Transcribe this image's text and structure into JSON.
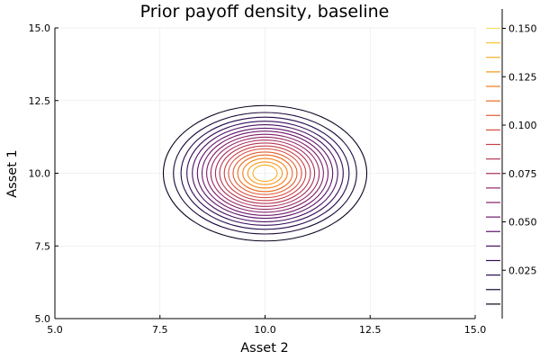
{
  "chart_data": {
    "type": "contour",
    "title": "Prior payoff density, baseline",
    "xlabel": "Asset 2",
    "ylabel": "Asset 1",
    "xlim": [
      5.0,
      15.0
    ],
    "ylim": [
      5.0,
      15.0
    ],
    "xticks": [
      "5.0",
      "7.5",
      "10.0",
      "12.5",
      "15.0"
    ],
    "yticks": [
      "5.0",
      "7.5",
      "10.0",
      "12.5",
      "15.0"
    ],
    "grid": true,
    "center": {
      "x": 10.0,
      "y": 10.0
    },
    "contour_levels": [
      0.0075,
      0.015,
      0.0225,
      0.03,
      0.0375,
      0.045,
      0.0525,
      0.06,
      0.0675,
      0.075,
      0.0825,
      0.09,
      0.0975,
      0.105,
      0.1125,
      0.12,
      0.1275,
      0.135,
      0.1425,
      0.15
    ],
    "contour_radii_x": [
      2.42,
      2.18,
      2.0,
      1.86,
      1.73,
      1.61,
      1.5,
      1.39,
      1.29,
      1.18,
      1.08,
      0.97,
      0.87,
      0.76,
      0.65,
      0.53,
      0.41,
      0.29
    ],
    "contour_radii_y": [
      2.33,
      2.09,
      1.93,
      1.79,
      1.67,
      1.55,
      1.45,
      1.34,
      1.24,
      1.14,
      1.04,
      0.94,
      0.84,
      0.73,
      0.63,
      0.51,
      0.39,
      0.28
    ],
    "colorbar": {
      "ticks": [
        "0.025",
        "0.050",
        "0.075",
        "0.100",
        "0.125",
        "0.150"
      ],
      "tick_values": [
        0.025,
        0.05,
        0.075,
        0.1,
        0.125,
        0.15
      ],
      "range": [
        0.0,
        0.16
      ],
      "colormap": "inferno"
    }
  }
}
